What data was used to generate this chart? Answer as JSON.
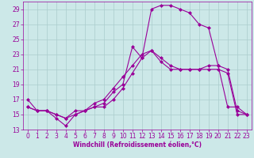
{
  "xlabel": "Windchill (Refroidissement éolien,°C)",
  "hours": [
    0,
    1,
    2,
    3,
    4,
    5,
    6,
    7,
    8,
    9,
    10,
    11,
    12,
    13,
    14,
    15,
    16,
    17,
    18,
    19,
    20,
    21,
    22,
    23
  ],
  "line1": [
    17,
    15.5,
    15.5,
    15,
    14.5,
    15.5,
    15.5,
    16,
    16,
    17,
    18.5,
    20.5,
    22.5,
    23.5,
    22.5,
    21.5,
    21,
    21,
    21,
    21.5,
    21.5,
    21,
    15.5,
    15
  ],
  "line2": [
    16,
    15.5,
    15.5,
    15,
    14.5,
    15,
    15.5,
    16.5,
    17,
    18.5,
    20,
    21.5,
    23,
    23.5,
    22,
    21,
    21,
    21,
    21,
    21,
    21,
    20.5,
    15,
    15
  ],
  "line3": [
    16,
    15.5,
    15.5,
    14.5,
    13.5,
    15,
    15.5,
    16,
    16.5,
    18,
    19,
    24,
    22.5,
    29,
    29.5,
    29.5,
    29,
    28.5,
    27,
    26.5,
    21.5,
    16,
    16,
    15
  ],
  "color": "#990099",
  "bg_color": "#cce8e8",
  "grid_color": "#aacccc",
  "ylim": [
    13,
    30
  ],
  "xlim": [
    -0.5,
    23.5
  ],
  "yticks": [
    13,
    15,
    17,
    19,
    21,
    23,
    25,
    27,
    29
  ],
  "xticks": [
    0,
    1,
    2,
    3,
    4,
    5,
    6,
    7,
    8,
    9,
    10,
    11,
    12,
    13,
    14,
    15,
    16,
    17,
    18,
    19,
    20,
    21,
    22,
    23
  ],
  "marker": "D",
  "markersize": 2.0,
  "linewidth": 0.8,
  "tick_fontsize": 5.5,
  "xlabel_fontsize": 5.5
}
